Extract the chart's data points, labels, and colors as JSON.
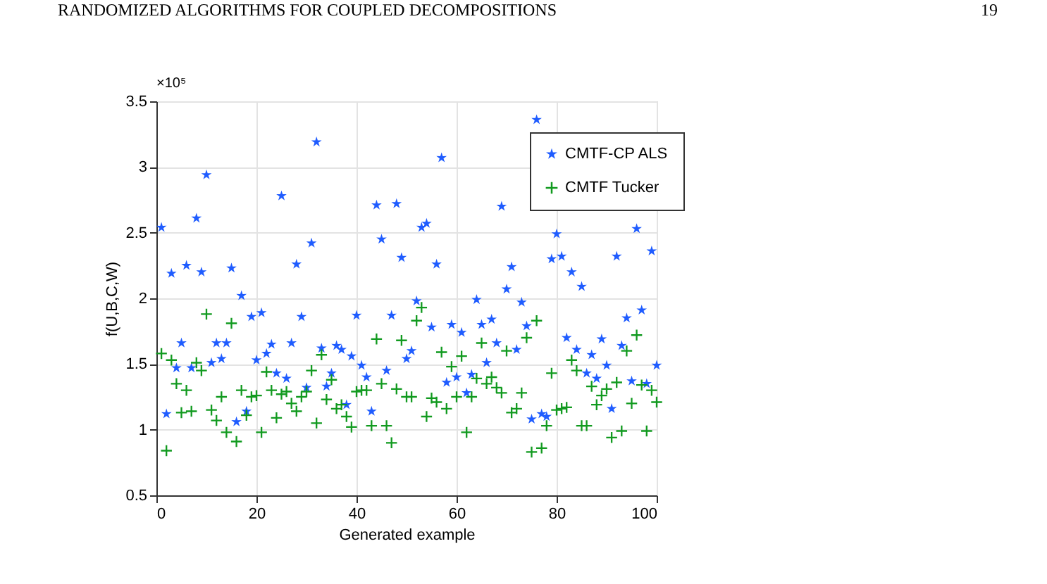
{
  "chart_data": {
    "type": "scatter",
    "title": "RANDOMIZED ALGORITHMS FOR COUPLED DECOMPOSITIONS",
    "xlabel": "Generated example",
    "ylabel": "f(U,B,C,W)",
    "annotations": [
      "×10⁵",
      "19"
    ],
    "xlim": [
      0,
      100
    ],
    "xticks": [
      0,
      20,
      40,
      60,
      80,
      100
    ],
    "ylim": [
      0.5,
      3.5
    ],
    "yticks": [
      0.5,
      1,
      1.5,
      2,
      2.5,
      3,
      3.5
    ],
    "grid": true,
    "legend": "top right",
    "series": [
      {
        "name": "CMTF-CP ALS",
        "color": "#1f5cff",
        "marker": "star",
        "x": [
          1,
          2,
          3,
          4,
          5,
          6,
          7,
          8,
          9,
          10,
          11,
          12,
          13,
          14,
          15,
          16,
          17,
          18,
          19,
          20,
          21,
          22,
          23,
          24,
          25,
          26,
          27,
          28,
          29,
          30,
          31,
          32,
          33,
          34,
          35,
          36,
          37,
          38,
          39,
          40,
          41,
          42,
          43,
          44,
          45,
          46,
          47,
          48,
          49,
          50,
          51,
          52,
          53,
          54,
          55,
          56,
          57,
          58,
          59,
          60,
          61,
          62,
          63,
          64,
          65,
          66,
          67,
          68,
          69,
          70,
          71,
          72,
          73,
          74,
          75,
          76,
          77,
          78,
          79,
          80,
          81,
          82,
          83,
          84,
          85,
          86,
          87,
          88,
          89,
          90,
          91,
          92,
          93,
          94,
          95,
          96,
          97,
          98,
          99,
          100
        ],
        "values": [
          2.54,
          1.12,
          2.19,
          1.47,
          1.66,
          2.25,
          1.47,
          2.61,
          2.2,
          2.94,
          1.51,
          1.66,
          1.54,
          1.66,
          2.23,
          1.06,
          2.02,
          1.14,
          1.86,
          1.53,
          1.89,
          1.58,
          1.65,
          1.43,
          2.78,
          1.39,
          1.66,
          2.26,
          1.86,
          1.32,
          2.42,
          3.19,
          1.62,
          1.33,
          1.43,
          1.64,
          1.61,
          1.19,
          1.56,
          1.87,
          1.49,
          1.4,
          1.14,
          2.71,
          2.45,
          1.45,
          1.87,
          2.72,
          2.31,
          1.54,
          1.6,
          1.98,
          2.54,
          2.57,
          1.78,
          2.26,
          3.07,
          1.36,
          1.8,
          1.4,
          1.74,
          1.28,
          1.42,
          1.99,
          1.8,
          1.51,
          1.84,
          1.66,
          2.7,
          2.07,
          2.24,
          1.61,
          1.97,
          1.79,
          1.08,
          3.36,
          1.12,
          1.1,
          2.3,
          2.49,
          2.32,
          1.7,
          2.2,
          1.61,
          2.09,
          1.43,
          1.57,
          1.39,
          1.69,
          1.49,
          1.16,
          2.32,
          1.64,
          1.85,
          1.37,
          2.53,
          1.91,
          1.35,
          2.36,
          1.49
        ]
      },
      {
        "name": "CMTF Tucker",
        "color": "#119a1f",
        "marker": "cross",
        "x": [
          1,
          2,
          3,
          4,
          5,
          6,
          7,
          8,
          9,
          10,
          11,
          12,
          13,
          14,
          15,
          16,
          17,
          18,
          19,
          20,
          21,
          22,
          23,
          24,
          25,
          26,
          27,
          28,
          29,
          30,
          31,
          32,
          33,
          34,
          35,
          36,
          37,
          38,
          39,
          40,
          41,
          42,
          43,
          44,
          45,
          46,
          47,
          48,
          49,
          50,
          51,
          52,
          53,
          54,
          55,
          56,
          57,
          58,
          59,
          60,
          61,
          62,
          63,
          64,
          65,
          66,
          67,
          68,
          69,
          70,
          71,
          72,
          73,
          74,
          75,
          76,
          77,
          78,
          79,
          80,
          81,
          82,
          83,
          84,
          85,
          86,
          87,
          88,
          89,
          90,
          91,
          92,
          93,
          94,
          95,
          96,
          97,
          98,
          99,
          100
        ],
        "values": [
          1.58,
          0.84,
          1.53,
          1.35,
          1.13,
          1.3,
          1.14,
          1.51,
          1.45,
          1.88,
          1.15,
          1.07,
          1.25,
          0.98,
          1.81,
          0.91,
          1.3,
          1.11,
          1.25,
          1.26,
          0.98,
          1.44,
          1.3,
          1.09,
          1.27,
          1.29,
          1.2,
          1.14,
          1.25,
          1.29,
          1.45,
          1.05,
          1.57,
          1.23,
          1.38,
          1.16,
          1.19,
          1.1,
          1.02,
          1.29,
          1.3,
          1.3,
          1.03,
          1.69,
          1.35,
          1.03,
          0.9,
          1.31,
          1.68,
          1.25,
          1.25,
          1.83,
          1.93,
          1.1,
          1.24,
          1.21,
          1.59,
          1.16,
          1.48,
          1.25,
          1.56,
          0.98,
          1.25,
          1.39,
          1.66,
          1.35,
          1.4,
          1.32,
          1.28,
          1.6,
          1.13,
          1.16,
          1.28,
          1.7,
          0.83,
          1.83,
          0.86,
          1.03,
          1.43,
          1.15,
          1.16,
          1.17,
          1.53,
          1.45,
          1.03,
          1.03,
          1.33,
          1.19,
          1.26,
          1.31,
          0.94,
          1.36,
          0.99,
          1.6,
          1.2,
          1.72,
          1.34,
          0.99,
          1.3,
          1.21
        ]
      }
    ]
  }
}
